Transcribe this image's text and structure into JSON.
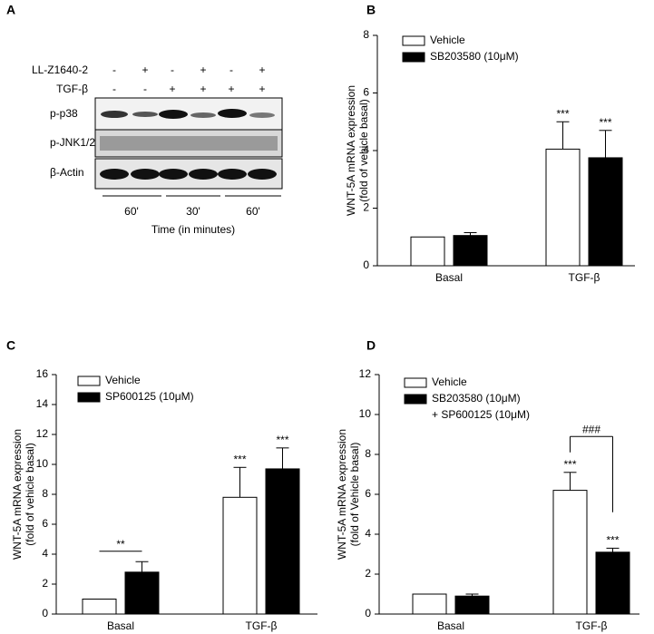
{
  "blot": {
    "panel_label": "A",
    "treatments": [
      {
        "label": "LL-Z1640-2",
        "signs": [
          "-",
          "+",
          "-",
          "+",
          "-",
          "+"
        ]
      },
      {
        "label": "TGF-β",
        "signs": [
          "-",
          "-",
          "+",
          "+",
          "+",
          "+"
        ]
      }
    ],
    "bands": [
      "p-p38",
      "p-JNK1/2",
      "β-Actin"
    ],
    "time_groups": [
      "60'",
      "30'",
      "60'"
    ],
    "time_label": "Time (in minutes)"
  },
  "chart_data": [
    {
      "type": "bar",
      "panel_label": "B",
      "ylabel": [
        "WNT-5A mRNA expression",
        "(fold of vehicle basal)"
      ],
      "categories": [
        "Basal",
        "TGF-β"
      ],
      "ylim": [
        0,
        8
      ],
      "yticks": [
        0,
        2,
        4,
        6,
        8
      ],
      "series": [
        {
          "name": "Vehicle",
          "color": "#ffffff",
          "values": [
            1.0,
            4.05
          ],
          "errors": [
            null,
            0.95
          ],
          "annotations": [
            null,
            "***"
          ]
        },
        {
          "name": "SB203580 (10μM)",
          "color": "#000000",
          "values": [
            1.05,
            3.75
          ],
          "errors": [
            0.1,
            0.95
          ],
          "annotations": [
            null,
            "***"
          ]
        }
      ]
    },
    {
      "type": "bar",
      "panel_label": "C",
      "ylabel": [
        "WNT-5A mRNA expression",
        "(fold of vehicle basal)"
      ],
      "categories": [
        "Basal",
        "TGF-β"
      ],
      "ylim": [
        0,
        16
      ],
      "yticks": [
        0,
        2,
        4,
        6,
        8,
        10,
        12,
        14,
        16
      ],
      "series": [
        {
          "name": "Vehicle",
          "color": "#ffffff",
          "values": [
            1.0,
            7.8
          ],
          "errors": [
            null,
            2.0
          ],
          "annotations": [
            null,
            "***"
          ]
        },
        {
          "name": "SP600125 (10μM)",
          "color": "#000000",
          "values": [
            2.8,
            9.7
          ],
          "errors": [
            0.7,
            1.4
          ],
          "annotations": [
            null,
            "***"
          ]
        }
      ],
      "brackets": [
        {
          "label": "**",
          "category": 0,
          "y": 4.2
        }
      ]
    },
    {
      "type": "bar",
      "panel_label": "D",
      "ylabel": [
        "WNT-5A mRNA expression",
        "(fold of Vehicle basal)"
      ],
      "categories": [
        "Basal",
        "TGF-β"
      ],
      "ylim": [
        0,
        12
      ],
      "yticks": [
        0,
        2,
        4,
        6,
        8,
        10,
        12
      ],
      "series": [
        {
          "name": "Vehicle",
          "color": "#ffffff",
          "values": [
            1.0,
            6.2
          ],
          "errors": [
            null,
            0.9
          ],
          "annotations": [
            null,
            "***"
          ]
        },
        {
          "name": "SB203580 (10μM)\n+ SP600125 (10μM)",
          "color": "#000000",
          "values": [
            0.9,
            3.1
          ],
          "errors": [
            0.1,
            0.2
          ],
          "annotations": [
            null,
            "***"
          ]
        }
      ],
      "brackets": [
        {
          "label": "###",
          "category": 1,
          "y": 8.9,
          "left_y": 8.1,
          "right_y": 5.1
        }
      ]
    }
  ]
}
